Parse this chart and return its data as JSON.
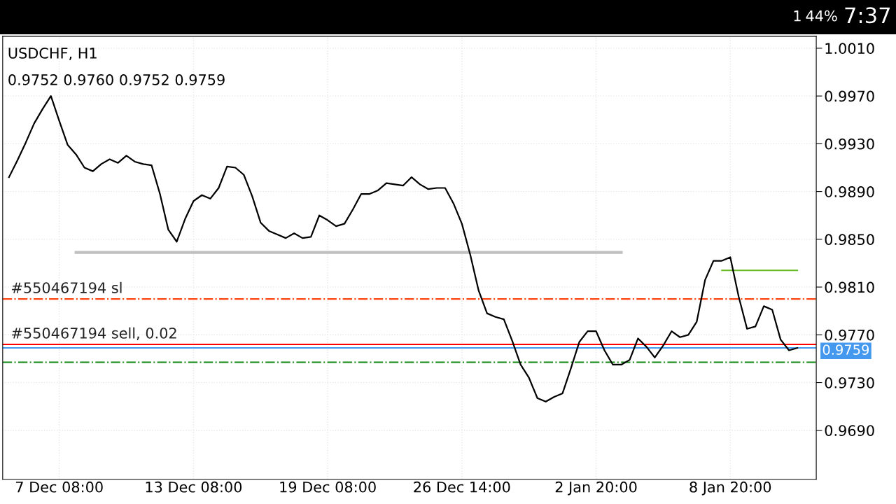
{
  "chart_data": {
    "type": "line",
    "title": "USDCHF, H1",
    "subtitle": "0.9752 0.9760 0.9752 0.9759",
    "categories": [
      null,
      null,
      null,
      null,
      null,
      null,
      "7 Dec 08:00",
      null,
      null,
      null,
      null,
      null,
      null,
      null,
      null,
      null,
      null,
      null,
      null,
      null,
      null,
      null,
      "13 Dec 08:00",
      null,
      null,
      null,
      null,
      null,
      null,
      null,
      null,
      null,
      null,
      null,
      null,
      null,
      null,
      null,
      "19 Dec 08:00",
      null,
      null,
      null,
      null,
      null,
      null,
      null,
      null,
      null,
      null,
      null,
      null,
      null,
      null,
      null,
      "26 Dec 14:00",
      null,
      null,
      null,
      null,
      null,
      null,
      null,
      null,
      null,
      null,
      null,
      null,
      null,
      null,
      null,
      "2 Jan 20:00",
      null,
      null,
      null,
      null,
      null,
      null,
      null,
      null,
      null,
      null,
      null,
      null,
      null,
      null,
      null,
      "8 Jan 20:00",
      null,
      null,
      null,
      null,
      null,
      null,
      null,
      null
    ],
    "ylim": [
      0.9649,
      1.002
    ],
    "yticks": [
      {
        "value": 0.969,
        "label": "0.9690"
      },
      {
        "value": 0.973,
        "label": "0.9730"
      },
      {
        "value": 0.977,
        "label": "0.9770"
      },
      {
        "value": 0.981,
        "label": "0.9810"
      },
      {
        "value": 0.985,
        "label": "0.9850"
      },
      {
        "value": 0.989,
        "label": "0.9890"
      },
      {
        "value": 0.993,
        "label": "0.9930"
      },
      {
        "value": 0.997,
        "label": "0.9970"
      },
      {
        "value": 1.001,
        "label": "1.0010"
      }
    ],
    "grid": true,
    "marker": "none",
    "line_style": "solid",
    "series": [
      {
        "color": "#000000",
        "values": [
          0.9902,
          0.9916,
          0.9931,
          0.9947,
          0.9959,
          0.997,
          0.9949,
          0.9929,
          0.9921,
          0.991,
          0.9907,
          0.9913,
          0.9917,
          0.9914,
          0.992,
          0.9915,
          0.9913,
          0.9912,
          0.9888,
          0.9858,
          0.9848,
          0.9867,
          0.9882,
          0.9887,
          0.9884,
          0.9893,
          0.9911,
          0.991,
          0.9904,
          0.9886,
          0.9864,
          0.9857,
          0.9854,
          0.9851,
          0.9855,
          0.9851,
          0.9852,
          0.987,
          0.9866,
          0.9861,
          0.9863,
          0.9875,
          0.9888,
          0.9888,
          0.9891,
          0.9897,
          0.9896,
          0.9895,
          0.9902,
          0.9896,
          0.9892,
          0.9893,
          0.9893,
          0.988,
          0.9863,
          0.9837,
          0.9807,
          0.9788,
          0.9785,
          0.9783,
          0.9765,
          0.9745,
          0.9734,
          0.9717,
          0.9714,
          0.9718,
          0.9721,
          0.9742,
          0.9764,
          0.9773,
          0.9773,
          0.9757,
          0.9745,
          0.9745,
          0.9749,
          0.9767,
          0.976,
          0.9751,
          0.9761,
          0.9773,
          0.9768,
          0.977,
          0.9781,
          0.9816,
          0.9832,
          0.9832,
          0.9835,
          0.9802,
          0.9775,
          0.9777,
          0.9794,
          0.9791,
          0.9766,
          0.9757,
          0.9759
        ]
      },
      {
        "color": "#c0c0c0",
        "values": [
          null,
          null,
          null,
          null,
          null,
          null,
          null,
          null,
          0.9839,
          0.9839,
          0.9839,
          0.9839,
          0.9839,
          0.9839,
          0.9839,
          0.9839,
          0.9839,
          0.9839,
          0.9839,
          0.9839,
          0.9839,
          0.9839,
          0.9839,
          0.9839,
          0.9839,
          0.9839,
          0.9839,
          0.9839,
          0.9839,
          0.9839,
          0.9839,
          0.9839,
          0.9839,
          0.9839,
          0.9839,
          0.9839,
          0.9839,
          0.9839,
          0.9839,
          0.9839,
          0.9839,
          0.9839,
          0.9839,
          0.9839,
          0.9839,
          0.9839,
          0.9839,
          0.9839,
          0.9839,
          0.9839,
          0.9839,
          0.9839,
          0.9839,
          0.9839,
          0.9839,
          0.9839,
          0.9839,
          0.9839,
          0.9839,
          0.9839,
          0.9839,
          0.9839,
          0.9839,
          0.9839,
          0.9839,
          0.9839,
          0.9839,
          0.9839,
          0.9839,
          0.9839,
          0.9839,
          0.9839,
          0.9839,
          0.9839,
          null,
          null,
          null,
          null,
          null,
          null,
          null,
          null,
          null,
          null,
          null,
          null,
          null,
          null,
          null,
          null,
          null,
          null,
          null,
          null,
          null
        ]
      },
      {
        "color": "#66bb22",
        "values": [
          null,
          null,
          null,
          null,
          null,
          null,
          null,
          null,
          null,
          null,
          null,
          null,
          null,
          null,
          null,
          null,
          null,
          null,
          null,
          null,
          null,
          null,
          null,
          null,
          null,
          null,
          null,
          null,
          null,
          null,
          null,
          null,
          null,
          null,
          null,
          null,
          null,
          null,
          null,
          null,
          null,
          null,
          null,
          null,
          null,
          null,
          null,
          null,
          null,
          null,
          null,
          null,
          null,
          null,
          null,
          null,
          null,
          null,
          null,
          null,
          null,
          null,
          null,
          null,
          null,
          null,
          null,
          null,
          null,
          null,
          null,
          null,
          null,
          null,
          null,
          null,
          null,
          null,
          null,
          null,
          null,
          null,
          null,
          null,
          null,
          0.9824,
          0.9824,
          0.9824,
          0.9824,
          0.9824,
          0.9824,
          0.9824,
          0.9824,
          0.9824,
          0.9824
        ]
      }
    ],
    "ref_lines": [
      {
        "axis": "y",
        "value": 0.98,
        "label": "#550467194 sl",
        "color": "#ff4411",
        "line_style": "dashdot"
      },
      {
        "axis": "y",
        "value": 0.9762,
        "label": "#550467194 sell, 0.02",
        "color": "#ff0000",
        "line_style": "solid"
      },
      {
        "axis": "y",
        "value": 0.9759,
        "color": "#4499ee",
        "line_style": "solid"
      },
      {
        "axis": "y",
        "value": 0.9747,
        "color": "#118811",
        "line_style": "dashdot"
      }
    ],
    "annotations": [
      "0.9759",
      "1",
      "44%",
      "7:37"
    ]
  }
}
